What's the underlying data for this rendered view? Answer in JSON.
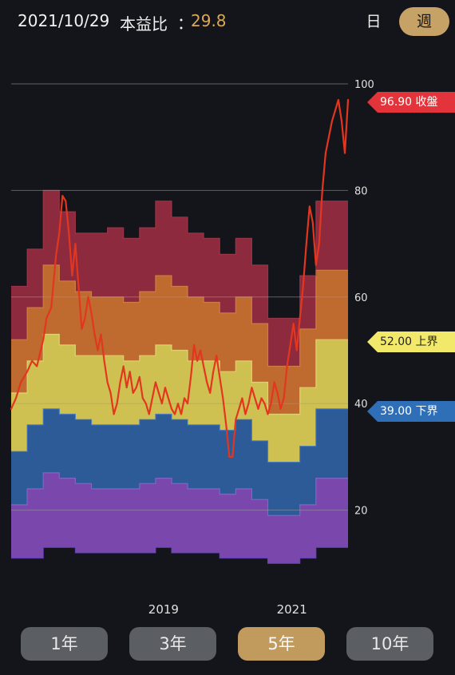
{
  "header": {
    "date": "2021/10/29",
    "metric_label": "本益比",
    "colon": "：",
    "metric_value": "29.8"
  },
  "frequency": {
    "day_label": "日",
    "week_label": "週",
    "selected": "週"
  },
  "tags": {
    "close": "96.90 收盤",
    "upper": "52.00 上界",
    "lower": "39.00 下界"
  },
  "periods": {
    "items": [
      "1年",
      "3年",
      "5年",
      "10年"
    ],
    "selected": "5年"
  },
  "colors": {
    "background": "#13151b",
    "band_purple": "#7a48ad",
    "band_blue": "#2d5b97",
    "band_yellow": "#cfc052",
    "band_orange": "#bf6a2f",
    "band_red": "#8e2a3d",
    "close_line": "#e3361f",
    "accent_gold": "#c7a266"
  },
  "chart_data": {
    "type": "area",
    "title": "",
    "xlabel": "",
    "ylabel": "",
    "ylim": [
      0,
      100
    ],
    "y_ticks": [
      20,
      40,
      60,
      80,
      100
    ],
    "x_tick_labels": [
      "2019",
      "2021"
    ],
    "x_tick_at_index": [
      9,
      17
    ],
    "band_boundaries": [
      [
        11,
        11,
        13,
        13,
        12,
        12,
        12,
        12,
        12,
        13,
        12,
        12,
        12,
        11,
        11,
        11,
        10,
        10,
        11,
        13,
        13
      ],
      [
        21,
        24,
        27,
        26,
        25,
        24,
        24,
        24,
        25,
        26,
        25,
        24,
        24,
        23,
        24,
        22,
        19,
        19,
        21,
        26,
        26
      ],
      [
        31,
        36,
        39,
        38,
        37,
        36,
        36,
        36,
        37,
        38,
        37,
        36,
        36,
        35,
        37,
        33,
        29,
        29,
        32,
        39,
        39
      ],
      [
        42,
        48,
        53,
        51,
        49,
        49,
        49,
        48,
        49,
        51,
        50,
        48,
        48,
        46,
        48,
        44,
        38,
        38,
        43,
        52,
        52
      ],
      [
        52,
        58,
        66,
        63,
        61,
        60,
        60,
        59,
        61,
        64,
        62,
        60,
        59,
        57,
        60,
        55,
        47,
        47,
        54,
        65,
        65
      ],
      [
        62,
        69,
        80,
        76,
        72,
        72,
        73,
        71,
        73,
        78,
        75,
        72,
        71,
        68,
        71,
        66,
        56,
        56,
        64,
        78,
        78
      ]
    ],
    "series": [
      {
        "name": "收盤",
        "points": [
          [
            0.0,
            39
          ],
          [
            0.3,
            41
          ],
          [
            0.6,
            44
          ],
          [
            1.0,
            46
          ],
          [
            1.3,
            48
          ],
          [
            1.6,
            47
          ],
          [
            2.0,
            52
          ],
          [
            2.2,
            56
          ],
          [
            2.5,
            58
          ],
          [
            2.8,
            68
          ],
          [
            3.0,
            72
          ],
          [
            3.2,
            79
          ],
          [
            3.4,
            78
          ],
          [
            3.6,
            72
          ],
          [
            3.8,
            64
          ],
          [
            4.0,
            70
          ],
          [
            4.2,
            62
          ],
          [
            4.4,
            54
          ],
          [
            4.6,
            56
          ],
          [
            4.8,
            60
          ],
          [
            5.0,
            57
          ],
          [
            5.2,
            53
          ],
          [
            5.4,
            50
          ],
          [
            5.6,
            53
          ],
          [
            5.8,
            48
          ],
          [
            6.0,
            44
          ],
          [
            6.2,
            42
          ],
          [
            6.4,
            38
          ],
          [
            6.6,
            40
          ],
          [
            6.8,
            44
          ],
          [
            7.0,
            47
          ],
          [
            7.2,
            43
          ],
          [
            7.4,
            46
          ],
          [
            7.6,
            42
          ],
          [
            7.8,
            43
          ],
          [
            8.0,
            45
          ],
          [
            8.2,
            41
          ],
          [
            8.4,
            40
          ],
          [
            8.6,
            38
          ],
          [
            8.8,
            41
          ],
          [
            9.0,
            44
          ],
          [
            9.2,
            42
          ],
          [
            9.4,
            40
          ],
          [
            9.6,
            43
          ],
          [
            9.8,
            41
          ],
          [
            10.0,
            39
          ],
          [
            10.2,
            38
          ],
          [
            10.4,
            40
          ],
          [
            10.6,
            38
          ],
          [
            10.8,
            41
          ],
          [
            11.0,
            40
          ],
          [
            11.2,
            45
          ],
          [
            11.4,
            51
          ],
          [
            11.6,
            48
          ],
          [
            11.8,
            50
          ],
          [
            12.0,
            47
          ],
          [
            12.2,
            44
          ],
          [
            12.4,
            42
          ],
          [
            12.6,
            46
          ],
          [
            12.8,
            49
          ],
          [
            13.0,
            45
          ],
          [
            13.2,
            41
          ],
          [
            13.4,
            36
          ],
          [
            13.6,
            30
          ],
          [
            13.8,
            30
          ],
          [
            14.0,
            37
          ],
          [
            14.2,
            39
          ],
          [
            14.4,
            41
          ],
          [
            14.6,
            38
          ],
          [
            14.8,
            40
          ],
          [
            15.0,
            43
          ],
          [
            15.2,
            41
          ],
          [
            15.4,
            39
          ],
          [
            15.6,
            41
          ],
          [
            15.8,
            40
          ],
          [
            16.0,
            38
          ],
          [
            16.2,
            40
          ],
          [
            16.4,
            44
          ],
          [
            16.6,
            42
          ],
          [
            16.8,
            39
          ],
          [
            17.0,
            41
          ],
          [
            17.2,
            47
          ],
          [
            17.4,
            51
          ],
          [
            17.6,
            55
          ],
          [
            17.8,
            50
          ],
          [
            18.0,
            56
          ],
          [
            18.2,
            62
          ],
          [
            18.4,
            70
          ],
          [
            18.6,
            77
          ],
          [
            18.8,
            74
          ],
          [
            19.0,
            66
          ],
          [
            19.2,
            70
          ],
          [
            19.4,
            80
          ],
          [
            19.6,
            87
          ],
          [
            19.8,
            90
          ],
          [
            20.0,
            93
          ],
          [
            20.2,
            95
          ],
          [
            20.4,
            97
          ],
          [
            20.6,
            93
          ],
          [
            20.8,
            87
          ],
          [
            21.0,
            97
          ]
        ]
      }
    ],
    "reference_lines": [
      {
        "name": "收盤",
        "value": 96.9
      },
      {
        "name": "上界",
        "value": 52
      },
      {
        "name": "下界",
        "value": 39
      }
    ]
  }
}
